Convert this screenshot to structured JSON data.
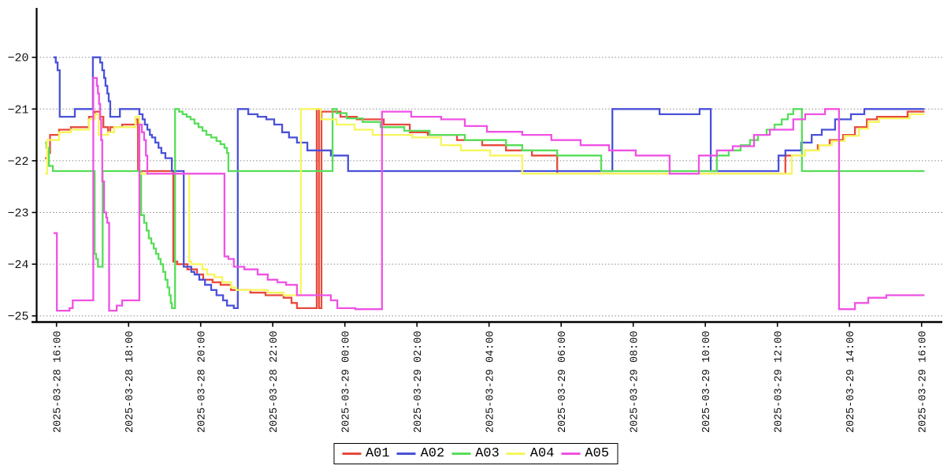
{
  "chart_data": {
    "type": "line",
    "subtype": "step-post",
    "title": "",
    "xlabel": "",
    "ylabel": "",
    "grid": "horizontal-dotted",
    "legend_position": "bottom-center",
    "x_axis": {
      "start_label": "2025-03-28 16:00",
      "end_label": "2025-03-29 16:00",
      "tick_interval_hours": 2,
      "ticks": [
        {
          "hour": 0,
          "label": "2025-03-28 16:00"
        },
        {
          "hour": 2,
          "label": "2025-03-28 18:00"
        },
        {
          "hour": 4,
          "label": "2025-03-28 20:00"
        },
        {
          "hour": 6,
          "label": "2025-03-28 22:00"
        },
        {
          "hour": 8,
          "label": "2025-03-29 00:00"
        },
        {
          "hour": 10,
          "label": "2025-03-29 02:00"
        },
        {
          "hour": 12,
          "label": "2025-03-29 04:00"
        },
        {
          "hour": 14,
          "label": "2025-03-29 06:00"
        },
        {
          "hour": 16,
          "label": "2025-03-29 08:00"
        },
        {
          "hour": 18,
          "label": "2025-03-29 10:00"
        },
        {
          "hour": 20,
          "label": "2025-03-29 12:00"
        },
        {
          "hour": 22,
          "label": "2025-03-29 14:00"
        },
        {
          "hour": 24,
          "label": "2025-03-29 16:00"
        }
      ],
      "data_start_hour": -0.32,
      "data_end_hour": 24.08
    },
    "y_axis": {
      "min": -25.1,
      "max": -19.05,
      "ticks": [
        {
          "value": -20,
          "label": "−20"
        },
        {
          "value": -21,
          "label": "−21"
        },
        {
          "value": -22,
          "label": "−22"
        },
        {
          "value": -23,
          "label": "−23"
        },
        {
          "value": -24,
          "label": "−24"
        },
        {
          "value": -25,
          "label": "−25"
        }
      ]
    },
    "series": [
      {
        "name": "A01",
        "color": "#e74a3c",
        "points": [
          [
            -0.32,
            -21.95
          ],
          [
            -0.24,
            -21.85
          ],
          [
            -0.18,
            -21.5
          ],
          [
            0.07,
            -21.4
          ],
          [
            0.4,
            -21.35
          ],
          [
            0.9,
            -21.15
          ],
          [
            1.06,
            -21.05
          ],
          [
            1.21,
            -21.15
          ],
          [
            1.3,
            -21.35
          ],
          [
            1.43,
            -21.45
          ],
          [
            1.49,
            -21.35
          ],
          [
            1.82,
            -21.3
          ],
          [
            2.2,
            -21.2
          ],
          [
            2.26,
            -22.2
          ],
          [
            3.24,
            -23.95
          ],
          [
            3.35,
            -24.0
          ],
          [
            3.63,
            -24.1
          ],
          [
            3.9,
            -24.2
          ],
          [
            4.07,
            -24.3
          ],
          [
            4.33,
            -24.35
          ],
          [
            4.55,
            -24.4
          ],
          [
            4.84,
            -24.5
          ],
          [
            5.38,
            -24.55
          ],
          [
            5.8,
            -24.6
          ],
          [
            6.3,
            -24.65
          ],
          [
            6.52,
            -24.75
          ],
          [
            6.67,
            -24.85
          ],
          [
            7.22,
            -21.0
          ],
          [
            7.28,
            -24.85
          ],
          [
            7.35,
            -21.05
          ],
          [
            7.88,
            -21.15
          ],
          [
            8.33,
            -21.2
          ],
          [
            9.08,
            -21.3
          ],
          [
            9.8,
            -21.45
          ],
          [
            10.3,
            -21.5
          ],
          [
            11.11,
            -21.6
          ],
          [
            11.81,
            -21.7
          ],
          [
            12.47,
            -21.8
          ],
          [
            13.19,
            -21.9
          ],
          [
            13.89,
            -22.25
          ],
          [
            20.22,
            -21.9
          ],
          [
            20.77,
            -21.8
          ],
          [
            21.12,
            -21.7
          ],
          [
            21.45,
            -21.6
          ],
          [
            21.82,
            -21.5
          ],
          [
            22.15,
            -21.35
          ],
          [
            22.48,
            -21.2
          ],
          [
            22.76,
            -21.15
          ],
          [
            23.61,
            -21.05
          ]
        ]
      },
      {
        "name": "A02",
        "color": "#4a51d8",
        "points": [
          [
            -0.08,
            -20.0
          ],
          [
            -0.02,
            -20.1
          ],
          [
            0.03,
            -20.25
          ],
          [
            0.09,
            -21.15
          ],
          [
            0.51,
            -21.0
          ],
          [
            1.01,
            -20.0
          ],
          [
            1.21,
            -20.1
          ],
          [
            1.27,
            -20.25
          ],
          [
            1.32,
            -20.4
          ],
          [
            1.36,
            -20.55
          ],
          [
            1.41,
            -20.7
          ],
          [
            1.45,
            -20.85
          ],
          [
            1.49,
            -21.15
          ],
          [
            1.76,
            -21.0
          ],
          [
            2.3,
            -21.1
          ],
          [
            2.39,
            -21.2
          ],
          [
            2.45,
            -21.3
          ],
          [
            2.52,
            -21.4
          ],
          [
            2.59,
            -21.5
          ],
          [
            2.65,
            -21.55
          ],
          [
            2.74,
            -21.65
          ],
          [
            2.83,
            -21.75
          ],
          [
            2.91,
            -21.85
          ],
          [
            3.02,
            -21.95
          ],
          [
            3.2,
            -22.2
          ],
          [
            3.53,
            -24.05
          ],
          [
            3.74,
            -24.15
          ],
          [
            3.83,
            -24.2
          ],
          [
            3.96,
            -24.3
          ],
          [
            4.12,
            -24.4
          ],
          [
            4.29,
            -24.5
          ],
          [
            4.44,
            -24.6
          ],
          [
            4.62,
            -24.7
          ],
          [
            4.73,
            -24.8
          ],
          [
            4.92,
            -24.85
          ],
          [
            5.03,
            -21.0
          ],
          [
            5.32,
            -21.1
          ],
          [
            5.58,
            -21.15
          ],
          [
            5.82,
            -21.2
          ],
          [
            6.04,
            -21.3
          ],
          [
            6.26,
            -21.45
          ],
          [
            6.45,
            -21.55
          ],
          [
            6.67,
            -21.65
          ],
          [
            6.96,
            -21.8
          ],
          [
            7.61,
            -21.9
          ],
          [
            8.09,
            -22.2
          ],
          [
            15.42,
            -21.0
          ],
          [
            16.73,
            -21.1
          ],
          [
            17.84,
            -21.0
          ],
          [
            18.15,
            -22.2
          ],
          [
            20.03,
            -21.9
          ],
          [
            20.22,
            -21.8
          ],
          [
            20.66,
            -21.65
          ],
          [
            20.95,
            -21.5
          ],
          [
            21.23,
            -21.4
          ],
          [
            21.6,
            -21.2
          ],
          [
            22.04,
            -21.1
          ],
          [
            22.41,
            -21.0
          ]
        ]
      },
      {
        "name": "A03",
        "color": "#56de58",
        "points": [
          [
            -0.32,
            -21.65
          ],
          [
            -0.28,
            -21.75
          ],
          [
            -0.21,
            -22.1
          ],
          [
            -0.1,
            -22.2
          ],
          [
            1.06,
            -23.8
          ],
          [
            1.1,
            -23.9
          ],
          [
            1.15,
            -24.05
          ],
          [
            1.28,
            -22.2
          ],
          [
            2.35,
            -23.05
          ],
          [
            2.43,
            -23.2
          ],
          [
            2.5,
            -23.35
          ],
          [
            2.56,
            -23.5
          ],
          [
            2.63,
            -23.6
          ],
          [
            2.7,
            -23.7
          ],
          [
            2.76,
            -23.8
          ],
          [
            2.83,
            -23.9
          ],
          [
            2.89,
            -24.0
          ],
          [
            2.96,
            -24.15
          ],
          [
            3.02,
            -24.3
          ],
          [
            3.08,
            -24.45
          ],
          [
            3.13,
            -24.6
          ],
          [
            3.17,
            -24.75
          ],
          [
            3.2,
            -24.85
          ],
          [
            3.29,
            -21.0
          ],
          [
            3.4,
            -21.05
          ],
          [
            3.5,
            -21.1
          ],
          [
            3.61,
            -21.15
          ],
          [
            3.72,
            -21.2
          ],
          [
            3.83,
            -21.28
          ],
          [
            3.94,
            -21.35
          ],
          [
            4.05,
            -21.42
          ],
          [
            4.16,
            -21.5
          ],
          [
            4.29,
            -21.55
          ],
          [
            4.44,
            -21.62
          ],
          [
            4.55,
            -21.68
          ],
          [
            4.66,
            -21.75
          ],
          [
            4.73,
            -21.85
          ],
          [
            4.77,
            -22.2
          ],
          [
            7.66,
            -21.0
          ],
          [
            7.77,
            -21.08
          ],
          [
            8.05,
            -21.18
          ],
          [
            8.49,
            -21.25
          ],
          [
            8.99,
            -21.35
          ],
          [
            9.65,
            -21.42
          ],
          [
            10.35,
            -21.5
          ],
          [
            11.33,
            -21.6
          ],
          [
            12.47,
            -21.7
          ],
          [
            12.92,
            -21.8
          ],
          [
            13.89,
            -21.9
          ],
          [
            15.11,
            -22.2
          ],
          [
            18.32,
            -21.9
          ],
          [
            18.65,
            -21.8
          ],
          [
            18.98,
            -21.7
          ],
          [
            19.24,
            -21.6
          ],
          [
            19.46,
            -21.5
          ],
          [
            19.7,
            -21.4
          ],
          [
            19.92,
            -21.3
          ],
          [
            20.12,
            -21.2
          ],
          [
            20.29,
            -21.1
          ],
          [
            20.44,
            -21.0
          ],
          [
            20.68,
            -22.2
          ]
        ]
      },
      {
        "name": "A04",
        "color": "#f6f65c",
        "points": [
          [
            -0.32,
            -22.25
          ],
          [
            -0.26,
            -21.6
          ],
          [
            0.07,
            -21.45
          ],
          [
            0.4,
            -21.4
          ],
          [
            0.9,
            -21.2
          ],
          [
            1.06,
            -21.1
          ],
          [
            1.17,
            -21.5
          ],
          [
            1.43,
            -21.45
          ],
          [
            1.6,
            -21.35
          ],
          [
            2.19,
            -21.15
          ],
          [
            2.3,
            -22.25
          ],
          [
            3.68,
            -23.95
          ],
          [
            3.74,
            -24.0
          ],
          [
            4.05,
            -24.1
          ],
          [
            4.18,
            -24.2
          ],
          [
            4.38,
            -24.25
          ],
          [
            4.6,
            -24.35
          ],
          [
            4.84,
            -24.45
          ],
          [
            4.99,
            -24.5
          ],
          [
            5.86,
            -24.55
          ],
          [
            6.3,
            -24.6
          ],
          [
            6.78,
            -21.0
          ],
          [
            7.33,
            -21.2
          ],
          [
            7.77,
            -21.3
          ],
          [
            8.27,
            -21.4
          ],
          [
            8.77,
            -21.5
          ],
          [
            9.87,
            -21.55
          ],
          [
            10.67,
            -21.7
          ],
          [
            11.22,
            -21.8
          ],
          [
            12.03,
            -21.9
          ],
          [
            12.92,
            -22.25
          ],
          [
            20.4,
            -21.9
          ],
          [
            20.77,
            -21.8
          ],
          [
            21.16,
            -21.7
          ],
          [
            21.51,
            -21.62
          ],
          [
            21.86,
            -21.52
          ],
          [
            22.26,
            -21.38
          ],
          [
            22.52,
            -21.25
          ],
          [
            22.82,
            -21.18
          ],
          [
            23.67,
            -21.1
          ]
        ]
      },
      {
        "name": "A05",
        "color": "#ef52e4",
        "points": [
          [
            -0.08,
            -23.4
          ],
          [
            0.01,
            -24.9
          ],
          [
            0.36,
            -24.85
          ],
          [
            0.45,
            -24.7
          ],
          [
            1.02,
            -20.4
          ],
          [
            1.12,
            -20.55
          ],
          [
            1.15,
            -20.7
          ],
          [
            1.18,
            -20.9
          ],
          [
            1.21,
            -21.2
          ],
          [
            1.24,
            -21.6
          ],
          [
            1.27,
            -22.4
          ],
          [
            1.32,
            -23.0
          ],
          [
            1.38,
            -23.1
          ],
          [
            1.41,
            -23.2
          ],
          [
            1.46,
            -24.9
          ],
          [
            1.67,
            -24.8
          ],
          [
            1.82,
            -24.7
          ],
          [
            2.3,
            -21.3
          ],
          [
            2.37,
            -21.45
          ],
          [
            2.43,
            -21.6
          ],
          [
            2.48,
            -21.9
          ],
          [
            2.52,
            -22.25
          ],
          [
            4.66,
            -23.85
          ],
          [
            4.77,
            -23.9
          ],
          [
            4.92,
            -24.05
          ],
          [
            5.21,
            -24.1
          ],
          [
            5.58,
            -24.2
          ],
          [
            5.86,
            -24.3
          ],
          [
            6.13,
            -24.35
          ],
          [
            6.37,
            -24.4
          ],
          [
            6.67,
            -24.6
          ],
          [
            7.61,
            -24.7
          ],
          [
            7.79,
            -24.85
          ],
          [
            8.29,
            -24.87
          ],
          [
            9.03,
            -21.05
          ],
          [
            9.84,
            -21.15
          ],
          [
            10.67,
            -21.2
          ],
          [
            11.33,
            -21.33
          ],
          [
            11.94,
            -21.44
          ],
          [
            12.92,
            -21.5
          ],
          [
            13.73,
            -21.6
          ],
          [
            14.54,
            -21.7
          ],
          [
            15.33,
            -21.8
          ],
          [
            16.07,
            -21.9
          ],
          [
            17.01,
            -22.25
          ],
          [
            17.82,
            -21.9
          ],
          [
            18.32,
            -21.8
          ],
          [
            18.76,
            -21.72
          ],
          [
            19.35,
            -21.5
          ],
          [
            19.79,
            -21.4
          ],
          [
            20.44,
            -21.2
          ],
          [
            20.77,
            -21.1
          ],
          [
            21.32,
            -21.0
          ],
          [
            21.71,
            -24.87
          ],
          [
            22.15,
            -24.75
          ],
          [
            22.52,
            -24.65
          ],
          [
            23.02,
            -24.6
          ]
        ]
      }
    ]
  },
  "legend": {
    "items": [
      {
        "label": "A01"
      },
      {
        "label": "A02"
      },
      {
        "label": "A03"
      },
      {
        "label": "A04"
      },
      {
        "label": "A05"
      }
    ]
  },
  "style_tokens": {
    "grid_color": "#8a8a8a",
    "axis_color": "#000000",
    "tick_label_color": "#111111"
  }
}
